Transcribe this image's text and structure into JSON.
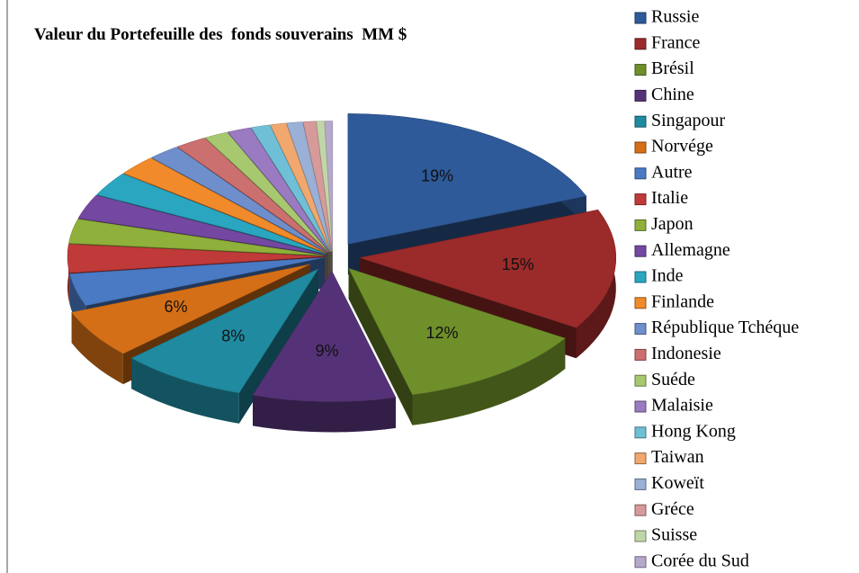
{
  "chart_data": {
    "type": "pie",
    "title": "Valeur du Portefeuille des  fonds souverains  MM $",
    "categories": [
      "Russie",
      "France",
      "Brésil",
      "Chine",
      "Singapour",
      "Norvége",
      "Autre",
      "Italie",
      "Japon",
      "Allemagne",
      "Inde",
      "Finlande",
      "République Tchéque",
      "Indonesie",
      "Suéde",
      "Malaisie",
      "Hong Kong",
      "Taiwan",
      "Koweït",
      "Gréce",
      "Suisse",
      "Corée du Sud"
    ],
    "values": [
      19,
      15,
      12,
      9,
      8,
      6,
      4,
      3.5,
      3,
      3,
      3,
      2.5,
      2,
      2,
      1.5,
      1.5,
      1.2,
      1,
      1,
      0.8,
      0.5,
      0.5
    ],
    "value_labels": [
      "19%",
      "15%",
      "12%",
      "9%",
      "8%",
      "6%",
      null,
      null,
      null,
      null,
      null,
      null,
      null,
      null,
      null,
      null,
      null,
      null,
      null,
      null,
      null,
      null
    ],
    "colors": [
      "#2e5a99",
      "#9b2a2a",
      "#6f8f2a",
      "#553277",
      "#1f8aa0",
      "#d56f17",
      "#4a7ac4",
      "#c03a3a",
      "#8fb03a",
      "#7448a0",
      "#2aa6c0",
      "#f08a2a",
      "#6f8fcc",
      "#cc6f6f",
      "#a8c86f",
      "#9a7ac0",
      "#6fc0d6",
      "#f0a86f",
      "#9ab0d6",
      "#d69a9a",
      "#c0d6a8",
      "#b6a8cc"
    ]
  }
}
